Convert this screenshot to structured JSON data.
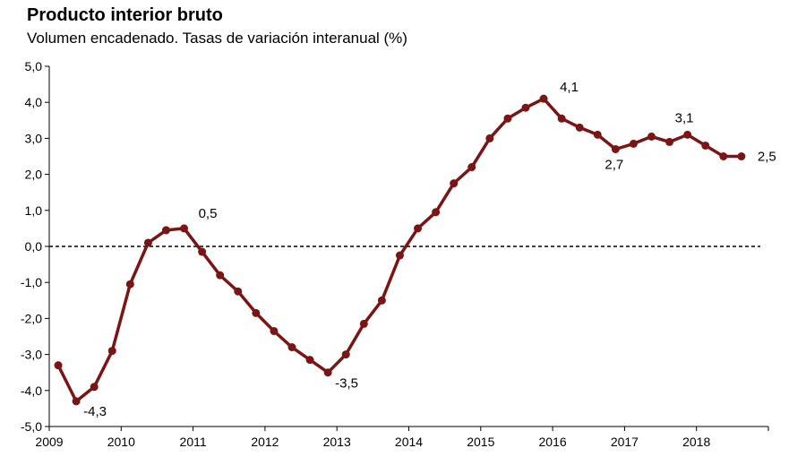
{
  "chart_data": {
    "type": "line",
    "title": "Producto interior bruto",
    "subtitle": "Volumen encadenado. Tasas de variación interanual (%)",
    "xlabel": "",
    "ylabel": "",
    "ylim": [
      -5,
      5
    ],
    "y_ticks": [
      "5,0",
      "4,0",
      "3,0",
      "2,0",
      "1,0",
      "0,0",
      "-1,0",
      "-2,0",
      "-3,0",
      "-4,0",
      "-5,0"
    ],
    "x_ticks": [
      "2009",
      "2010",
      "2011",
      "2012",
      "2013",
      "2014",
      "2015",
      "2016",
      "2017",
      "2018"
    ],
    "grid": false,
    "reference_line": 0,
    "series": [
      {
        "color": "#7b1414",
        "x": [
          "2009-I",
          "2009-II",
          "2009-III",
          "2009-IV",
          "2010-I",
          "2010-II",
          "2010-III",
          "2010-IV",
          "2011-I",
          "2011-II",
          "2011-III",
          "2011-IV",
          "2012-I",
          "2012-II",
          "2012-III",
          "2012-IV",
          "2013-I",
          "2013-II",
          "2013-III",
          "2013-IV",
          "2014-I",
          "2014-II",
          "2014-III",
          "2014-IV",
          "2015-I",
          "2015-II",
          "2015-III",
          "2015-IV",
          "2016-I",
          "2016-II",
          "2016-III",
          "2016-IV",
          "2017-I",
          "2017-II",
          "2017-III",
          "2017-IV",
          "2018-I",
          "2018-II",
          "2018-III"
        ],
        "values": [
          -3.3,
          -4.3,
          -3.9,
          -2.9,
          -1.05,
          0.1,
          0.45,
          0.5,
          -0.15,
          -0.8,
          -1.25,
          -1.85,
          -2.35,
          -2.8,
          -3.15,
          -3.5,
          -3.0,
          -2.15,
          -1.5,
          -0.25,
          0.5,
          0.95,
          1.75,
          2.2,
          3.0,
          3.55,
          3.85,
          4.1,
          3.55,
          3.3,
          3.1,
          2.7,
          2.85,
          3.05,
          2.9,
          3.1,
          2.8,
          2.5,
          2.5
        ]
      }
    ],
    "annotations": [
      {
        "index": 1,
        "text": "-4,3"
      },
      {
        "index": 7,
        "text": "0,5"
      },
      {
        "index": 15,
        "text": "-3,5"
      },
      {
        "index": 27,
        "text": "4,1"
      },
      {
        "index": 31,
        "text": "2,7"
      },
      {
        "index": 35,
        "text": "3,1"
      },
      {
        "index": 38,
        "text": "2,5"
      }
    ]
  }
}
